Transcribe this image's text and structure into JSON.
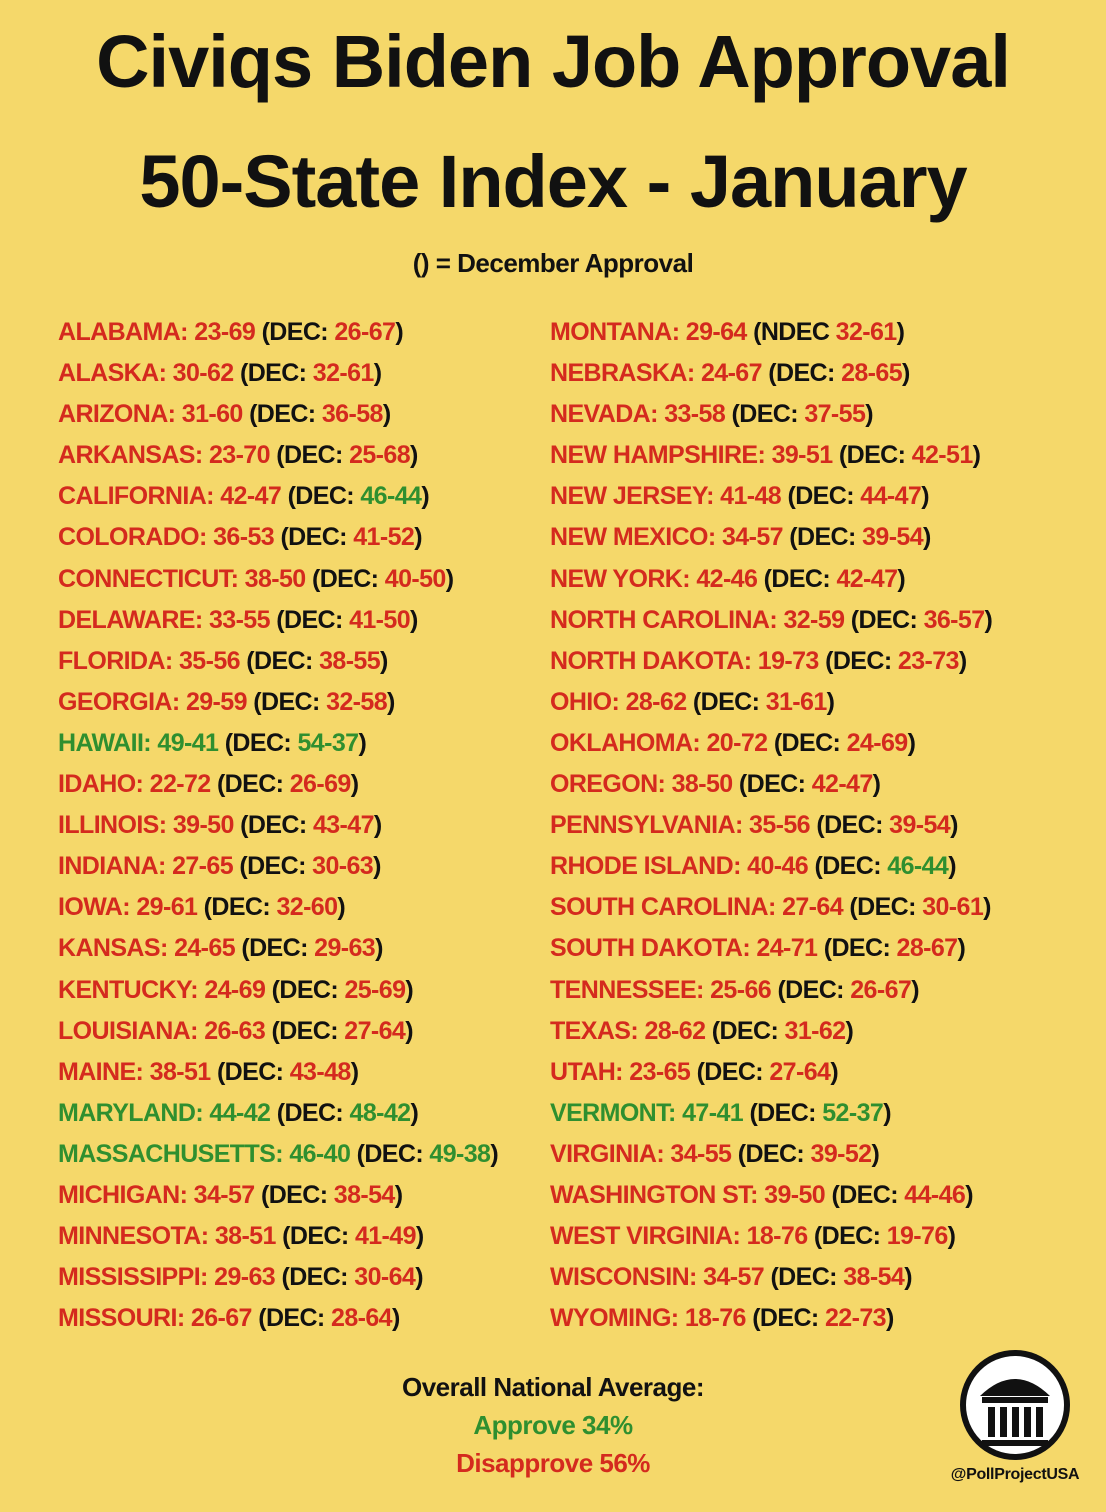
{
  "title_line1": "Civiqs Biden Job Approval",
  "title_line2": "50-State Index - January",
  "subtitle": "() = December Approval",
  "colors": {
    "background": "#f5d86a",
    "disapprove_red": "#d42a1e",
    "approve_green": "#2f8f2f",
    "text_black": "#111111"
  },
  "left_column": [
    {
      "state": "ALABAMA:",
      "jan": "23-69",
      "dec_prefix": "(DEC:",
      "dec": "26-67",
      "dec_suffix": ")",
      "green": false,
      "dec_green": false
    },
    {
      "state": "ALASKA:",
      "jan": "30-62",
      "dec_prefix": "(DEC:",
      "dec": "32-61",
      "dec_suffix": ")",
      "green": false,
      "dec_green": false
    },
    {
      "state": "ARIZONA:",
      "jan": "31-60",
      "dec_prefix": "(DEC:",
      "dec": "36-58",
      "dec_suffix": ")",
      "green": false,
      "dec_green": false
    },
    {
      "state": "ARKANSAS:",
      "jan": "23-70",
      "dec_prefix": "(DEC:",
      "dec": "25-68",
      "dec_suffix": ")",
      "green": false,
      "dec_green": false
    },
    {
      "state": "CALIFORNIA:",
      "jan": "42-47",
      "dec_prefix": "(DEC:",
      "dec": "46-44",
      "dec_suffix": ")",
      "green": false,
      "dec_green": true
    },
    {
      "state": "COLORADO:",
      "jan": "36-53",
      "dec_prefix": "(DEC:",
      "dec": "41-52",
      "dec_suffix": ")",
      "green": false,
      "dec_green": false
    },
    {
      "state": "CONNECTICUT:",
      "jan": "38-50",
      "dec_prefix": "(DEC:",
      "dec": "40-50",
      "dec_suffix": ")",
      "green": false,
      "dec_green": false
    },
    {
      "state": "DELAWARE:",
      "jan": "33-55",
      "dec_prefix": "(DEC:",
      "dec": "41-50",
      "dec_suffix": ")",
      "green": false,
      "dec_green": false
    },
    {
      "state": "FLORIDA:",
      "jan": "35-56",
      "dec_prefix": "(DEC:",
      "dec": "38-55",
      "dec_suffix": ")",
      "green": false,
      "dec_green": false
    },
    {
      "state": "GEORGIA:",
      "jan": "29-59",
      "dec_prefix": "(DEC:",
      "dec": "32-58",
      "dec_suffix": ")",
      "green": false,
      "dec_green": false
    },
    {
      "state": "HAWAII:",
      "jan": "49-41",
      "dec_prefix": "(DEC:",
      "dec": "54-37",
      "dec_suffix": ")",
      "green": true,
      "dec_green": true
    },
    {
      "state": "IDAHO:",
      "jan": "22-72",
      "dec_prefix": "(DEC:",
      "dec": "26-69",
      "dec_suffix": ")",
      "green": false,
      "dec_green": false
    },
    {
      "state": "ILLINOIS:",
      "jan": "39-50",
      "dec_prefix": "(DEC:",
      "dec": "43-47",
      "dec_suffix": ")",
      "green": false,
      "dec_green": false
    },
    {
      "state": "INDIANA:",
      "jan": "27-65",
      "dec_prefix": "(DEC:",
      "dec": "30-63",
      "dec_suffix": ")",
      "green": false,
      "dec_green": false
    },
    {
      "state": "IOWA:",
      "jan": "29-61",
      "dec_prefix": "(DEC:",
      "dec": "32-60",
      "dec_suffix": ")",
      "green": false,
      "dec_green": false
    },
    {
      "state": "KANSAS:",
      "jan": "24-65",
      "dec_prefix": "(DEC:",
      "dec": "29-63",
      "dec_suffix": ")",
      "green": false,
      "dec_green": false
    },
    {
      "state": "KENTUCKY:",
      "jan": "24-69",
      "dec_prefix": "(DEC:",
      "dec": "25-69",
      "dec_suffix": ")",
      "green": false,
      "dec_green": false
    },
    {
      "state": "LOUISIANA:",
      "jan": "26-63",
      "dec_prefix": "(DEC:",
      "dec": "27-64",
      "dec_suffix": ")",
      "green": false,
      "dec_green": false
    },
    {
      "state": "MAINE:",
      "jan": "38-51",
      "dec_prefix": "(DEC:",
      "dec": "43-48",
      "dec_suffix": ")",
      "green": false,
      "dec_green": false
    },
    {
      "state": "MARYLAND:",
      "jan": "44-42",
      "dec_prefix": "(DEC:",
      "dec": "48-42",
      "dec_suffix": ")",
      "green": true,
      "dec_green": true
    },
    {
      "state": "MASSACHUSETTS:",
      "jan": "46-40",
      "dec_prefix": "(DEC:",
      "dec": "49-38",
      "dec_suffix": ")",
      "green": true,
      "dec_green": true
    },
    {
      "state": "MICHIGAN:",
      "jan": "34-57",
      "dec_prefix": "(DEC:",
      "dec": "38-54",
      "dec_suffix": ")",
      "green": false,
      "dec_green": false
    },
    {
      "state": "MINNESOTA:",
      "jan": "38-51",
      "dec_prefix": "(DEC:",
      "dec": "41-49",
      "dec_suffix": ")",
      "green": false,
      "dec_green": false
    },
    {
      "state": "MISSISSIPPI:",
      "jan": "29-63",
      "dec_prefix": "(DEC:",
      "dec": "30-64",
      "dec_suffix": ")",
      "green": false,
      "dec_green": false
    },
    {
      "state": "MISSOURI:",
      "jan": "26-67",
      "dec_prefix": "(DEC:",
      "dec": "28-64",
      "dec_suffix": ")",
      "green": false,
      "dec_green": false
    }
  ],
  "right_column": [
    {
      "state": "MONTANA:",
      "jan": "29-64",
      "dec_prefix": "(NDEC",
      "dec": "32-61",
      "dec_suffix": ")",
      "green": false,
      "dec_green": false
    },
    {
      "state": "NEBRASKA:",
      "jan": "24-67",
      "dec_prefix": "(DEC:",
      "dec": "28-65",
      "dec_suffix": ")",
      "green": false,
      "dec_green": false
    },
    {
      "state": "NEVADA:",
      "jan": "33-58",
      "dec_prefix": "(DEC:",
      "dec": "37-55",
      "dec_suffix": ")",
      "green": false,
      "dec_green": false
    },
    {
      "state": "NEW HAMPSHIRE:",
      "jan": "39-51",
      "dec_prefix": "(DEC:",
      "dec": "42-51",
      "dec_suffix": ")",
      "green": false,
      "dec_green": false
    },
    {
      "state": "NEW JERSEY:",
      "jan": "41-48",
      "dec_prefix": "(DEC:",
      "dec": "44-47",
      "dec_suffix": ")",
      "green": false,
      "dec_green": false
    },
    {
      "state": "NEW MEXICO:",
      "jan": "34-57",
      "dec_prefix": "(DEC:",
      "dec": "39-54",
      "dec_suffix": ")",
      "green": false,
      "dec_green": false
    },
    {
      "state": "NEW YORK:",
      "jan": "42-46",
      "dec_prefix": "(DEC:",
      "dec": "42-47",
      "dec_suffix": ")",
      "green": false,
      "dec_green": false
    },
    {
      "state": "NORTH CAROLINA:",
      "jan": "32-59",
      "dec_prefix": "(DEC:",
      "dec": "36-57",
      "dec_suffix": ")",
      "green": false,
      "dec_green": false
    },
    {
      "state": "NORTH DAKOTA:",
      "jan": "19-73",
      "dec_prefix": "(DEC:",
      "dec": "23-73",
      "dec_suffix": ")",
      "green": false,
      "dec_green": false
    },
    {
      "state": "OHIO:",
      "jan": "28-62",
      "dec_prefix": "(DEC:",
      "dec": "31-61",
      "dec_suffix": ")",
      "green": false,
      "dec_green": false
    },
    {
      "state": "OKLAHOMA:",
      "jan": "20-72",
      "dec_prefix": "(DEC:",
      "dec": "24-69",
      "dec_suffix": ")",
      "green": false,
      "dec_green": false
    },
    {
      "state": "OREGON:",
      "jan": "38-50",
      "dec_prefix": "(DEC:",
      "dec": "42-47",
      "dec_suffix": ")",
      "green": false,
      "dec_green": false
    },
    {
      "state": "PENNSYLVANIA:",
      "jan": "35-56",
      "dec_prefix": "(DEC:",
      "dec": "39-54",
      "dec_suffix": ")",
      "green": false,
      "dec_green": false
    },
    {
      "state": "RHODE ISLAND:",
      "jan": "40-46",
      "dec_prefix": "(DEC:",
      "dec": "46-44",
      "dec_suffix": ")",
      "green": false,
      "dec_green": true
    },
    {
      "state": "SOUTH CAROLINA:",
      "jan": "27-64",
      "dec_prefix": "(DEC:",
      "dec": "30-61",
      "dec_suffix": ")",
      "green": false,
      "dec_green": false
    },
    {
      "state": "SOUTH DAKOTA:",
      "jan": "24-71",
      "dec_prefix": "(DEC:",
      "dec": "28-67",
      "dec_suffix": ")",
      "green": false,
      "dec_green": false
    },
    {
      "state": "TENNESSEE:",
      "jan": "25-66",
      "dec_prefix": "(DEC:",
      "dec": "26-67",
      "dec_suffix": ")",
      "green": false,
      "dec_green": false
    },
    {
      "state": "TEXAS:",
      "jan": "28-62",
      "dec_prefix": "(DEC:",
      "dec": "31-62",
      "dec_suffix": ")",
      "green": false,
      "dec_green": false
    },
    {
      "state": "UTAH:",
      "jan": "23-65",
      "dec_prefix": "(DEC:",
      "dec": "27-64",
      "dec_suffix": ")",
      "green": false,
      "dec_green": false
    },
    {
      "state": "VERMONT:",
      "jan": "47-41",
      "dec_prefix": "(DEC:",
      "dec": "52-37",
      "dec_suffix": ")",
      "green": true,
      "dec_green": true
    },
    {
      "state": "VIRGINIA:",
      "jan": "34-55",
      "dec_prefix": "(DEC:",
      "dec": "39-52",
      "dec_suffix": ")",
      "green": false,
      "dec_green": false
    },
    {
      "state": "WASHINGTON ST:",
      "jan": "39-50",
      "dec_prefix": "(DEC:",
      "dec": "44-46",
      "dec_suffix": ")",
      "green": false,
      "dec_green": false
    },
    {
      "state": "WEST VIRGINIA:",
      "jan": "18-76",
      "dec_prefix": "(DEC:",
      "dec": "19-76",
      "dec_suffix": ")",
      "green": false,
      "dec_green": false
    },
    {
      "state": "WISCONSIN:",
      "jan": "34-57",
      "dec_prefix": "(DEC:",
      "dec": "38-54",
      "dec_suffix": ")",
      "green": false,
      "dec_green": false
    },
    {
      "state": "WYOMING:",
      "jan": "18-76",
      "dec_prefix": "(DEC:",
      "dec": "22-73",
      "dec_suffix": ")",
      "green": false,
      "dec_green": false
    }
  ],
  "footer": {
    "average_label": "Overall National Average:",
    "approve": "Approve 34%",
    "disapprove": "Disapprove 56%"
  },
  "logo_icon": "columns-building-icon",
  "handle": "@PollProjectUSA"
}
